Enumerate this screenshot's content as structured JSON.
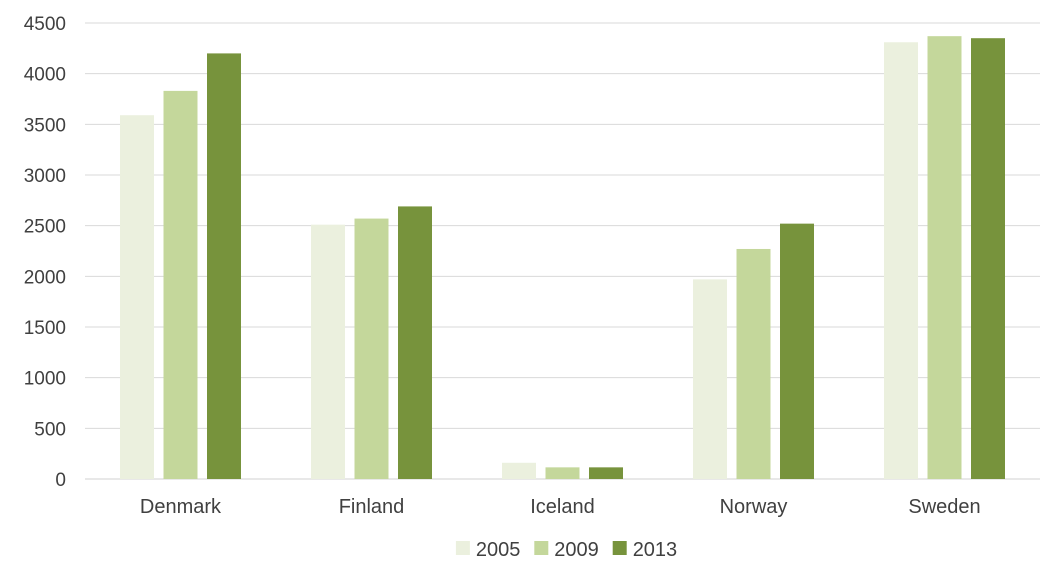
{
  "chart_data": {
    "type": "bar",
    "categories": [
      "Denmark",
      "Finland",
      "Iceland",
      "Norway",
      "Sweden"
    ],
    "series": [
      {
        "name": "2005",
        "color": "#ebf0de",
        "values": [
          3590,
          2510,
          160,
          1970,
          4310
        ]
      },
      {
        "name": "2009",
        "color": "#c4d79b",
        "values": [
          3830,
          2570,
          115,
          2270,
          4370
        ]
      },
      {
        "name": "2013",
        "color": "#77933c",
        "values": [
          4200,
          2690,
          115,
          2520,
          4350
        ]
      }
    ],
    "yticks": [
      "0",
      "500",
      "1000",
      "1500",
      "2000",
      "2500",
      "3000",
      "3500",
      "4000",
      "4500"
    ],
    "ylim": [
      0,
      4500
    ],
    "grid": true,
    "legend_position": "bottom-center",
    "title": "",
    "xlabel": "",
    "ylabel": ""
  }
}
